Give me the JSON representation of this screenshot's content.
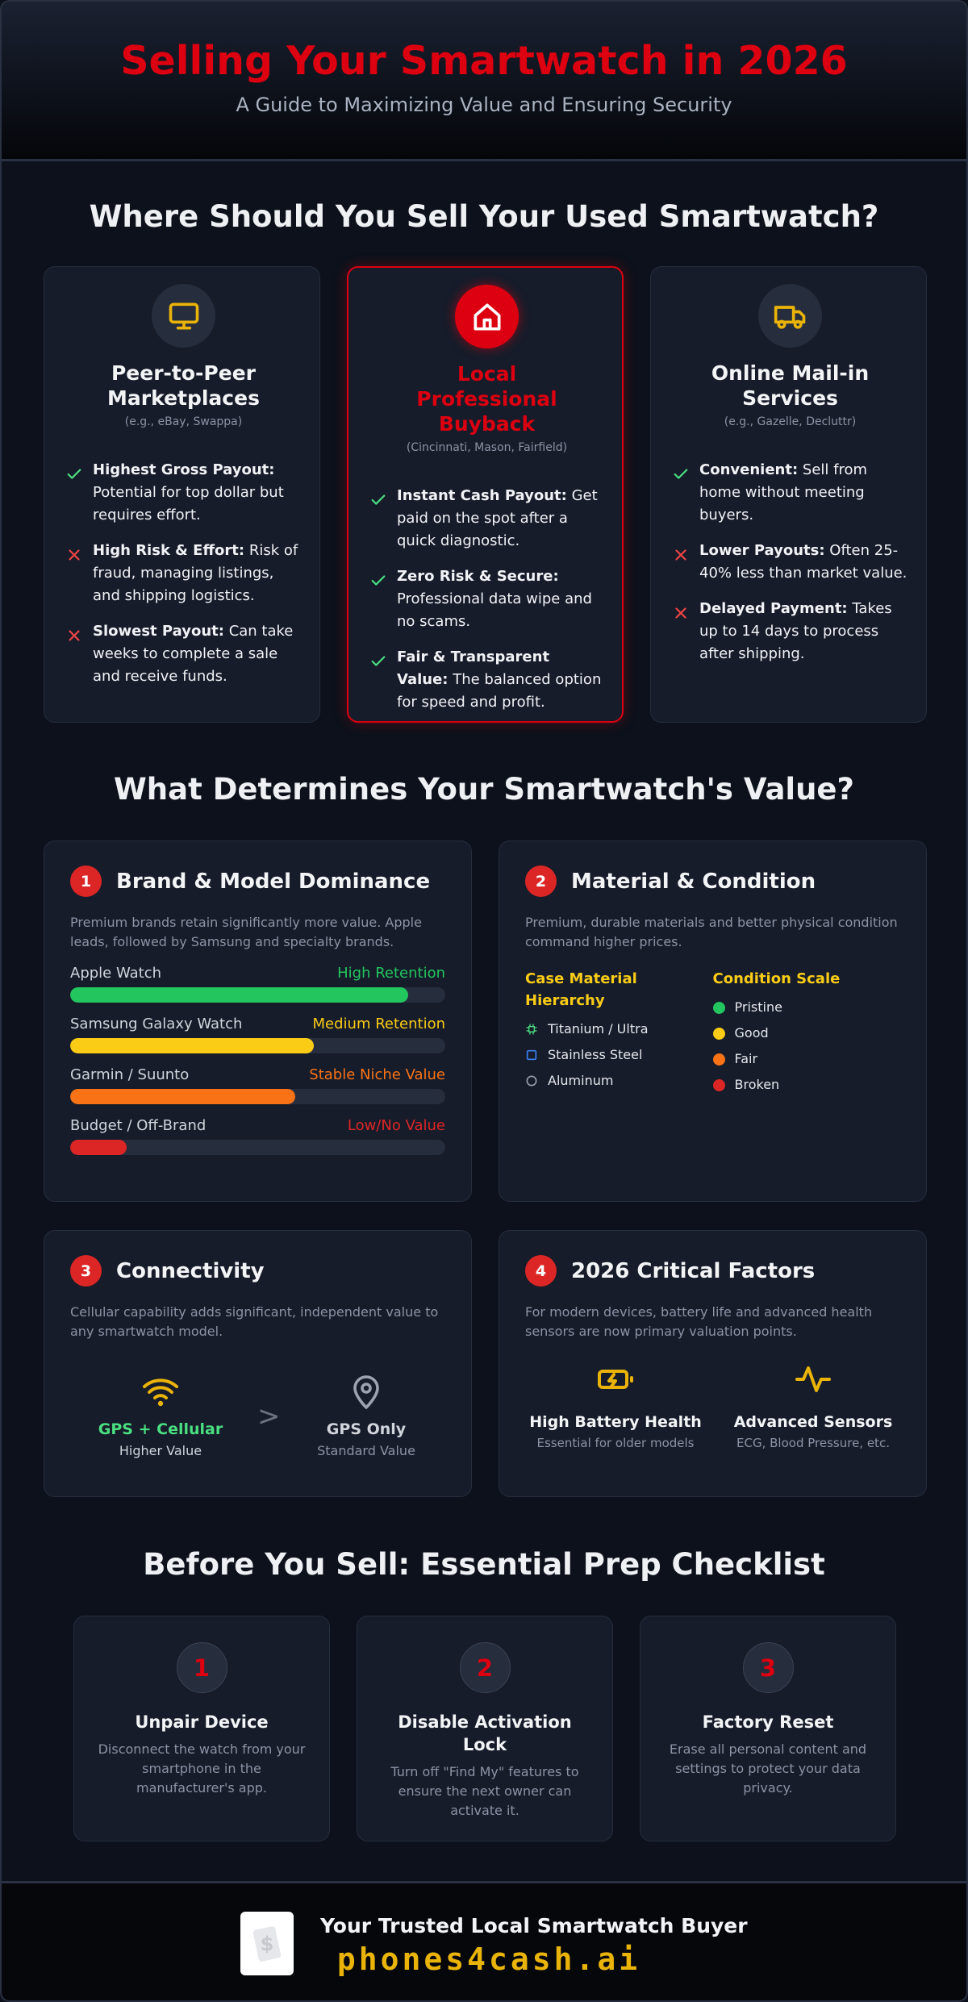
{
  "header": {
    "title": "Selling Your Smartwatch in 2026",
    "subtitle": "A Guide to Maximizing Value and Ensuring Security"
  },
  "where_to_sell": {
    "heading": "Where Should You Sell Your Used Smartwatch?",
    "options": [
      {
        "title": "Peer-to-Peer Marketplaces",
        "examples": "(e.g., eBay, Swappa)",
        "highlight": false,
        "points": [
          {
            "status": "pro",
            "label": "Highest Gross Payout:",
            "text": "Potential for top dollar but requires effort."
          },
          {
            "status": "con",
            "label": "High Risk & Effort:",
            "text": "Risk of fraud, managing listings, and shipping logistics."
          },
          {
            "status": "con",
            "label": "Slowest Payout:",
            "text": "Can take weeks to complete a sale and receive funds."
          }
        ]
      },
      {
        "title": "Local Professional Buyback",
        "examples": "(Cincinnati, Mason, Fairfield)",
        "highlight": true,
        "points": [
          {
            "status": "pro",
            "label": "Instant Cash Payout:",
            "text": "Get paid on the spot after a quick diagnostic."
          },
          {
            "status": "pro",
            "label": "Zero Risk & Secure:",
            "text": "Professional data wipe and no scams."
          },
          {
            "status": "pro",
            "label": "Fair & Transparent Value:",
            "text": "The balanced option for speed and profit."
          }
        ]
      },
      {
        "title": "Online Mail-in Services",
        "examples": "(e.g., Gazelle, Decluttr)",
        "highlight": false,
        "points": [
          {
            "status": "pro",
            "label": "Convenient:",
            "text": "Sell from home without meeting buyers."
          },
          {
            "status": "con",
            "label": "Lower Payouts:",
            "text": "Often 25-40% less than market value."
          },
          {
            "status": "con",
            "label": "Delayed Payment:",
            "text": "Takes up to 14 days to process after shipping."
          }
        ]
      }
    ]
  },
  "value_factors": {
    "heading": "What Determines Your Smartwatch's Value?",
    "factors": [
      {
        "number": "1",
        "title": "Brand & Model Dominance",
        "description": "Premium brands retain significantly more value. Apple leads, followed by Samsung and specialty brands.",
        "brands": [
          {
            "name": "Apple Watch",
            "rating": "High Retention",
            "level": 90,
            "color": "#22c55e"
          },
          {
            "name": "Samsung Galaxy Watch",
            "rating": "Medium Retention",
            "level": 65,
            "color": "#facc15"
          },
          {
            "name": "Garmin / Suunto",
            "rating": "Stable Niche Value",
            "level": 60,
            "color": "#f97316"
          },
          {
            "name": "Budget / Off-Brand",
            "rating": "Low/No Value",
            "level": 15,
            "color": "#dc2626"
          }
        ]
      },
      {
        "number": "2",
        "title": "Material & Condition",
        "description": "Premium, durable materials and better physical condition command higher prices.",
        "materials": {
          "heading": "Case Material Hierarchy",
          "items": [
            "Titanium / Ultra",
            "Stainless Steel",
            "Aluminum"
          ]
        },
        "conditions": {
          "heading": "Condition Scale",
          "items": [
            {
              "name": "Pristine",
              "color": "#22c55e"
            },
            {
              "name": "Good",
              "color": "#facc15"
            },
            {
              "name": "Fair",
              "color": "#f97316"
            },
            {
              "name": "Broken",
              "color": "#dc2626"
            }
          ]
        }
      },
      {
        "number": "3",
        "title": "Connectivity",
        "description": "Cellular capability adds significant, independent value to any smartwatch model.",
        "comparison": [
          {
            "label": "GPS + Cellular",
            "sub": "Higher Value"
          },
          {
            "label": "GPS Only",
            "sub": "Standard Value"
          }
        ],
        "separator": ">"
      },
      {
        "number": "4",
        "title": "2026 Critical Factors",
        "description": "For modern devices, battery life and advanced health sensors are now primary valuation points.",
        "items": [
          {
            "label": "High Battery Health",
            "sub": "Essential for older models"
          },
          {
            "label": "Advanced Sensors",
            "sub": "ECG, Blood Pressure, etc."
          }
        ]
      }
    ]
  },
  "checklist": {
    "heading": "Before You Sell: Essential Prep Checklist",
    "steps": [
      {
        "number": "1",
        "title": "Unpair Device",
        "text": "Disconnect the watch from your smartphone in the manufacturer's app."
      },
      {
        "number": "2",
        "title": "Disable Activation Lock",
        "text": "Turn off \"Find My\" features to ensure the next owner can activate it."
      },
      {
        "number": "3",
        "title": "Factory Reset",
        "text": "Erase all personal content and settings to protect your data privacy."
      }
    ]
  },
  "footer": {
    "tagline": "Your Trusted Local Smartwatch Buyer",
    "brand": "phones4cash.ai"
  }
}
